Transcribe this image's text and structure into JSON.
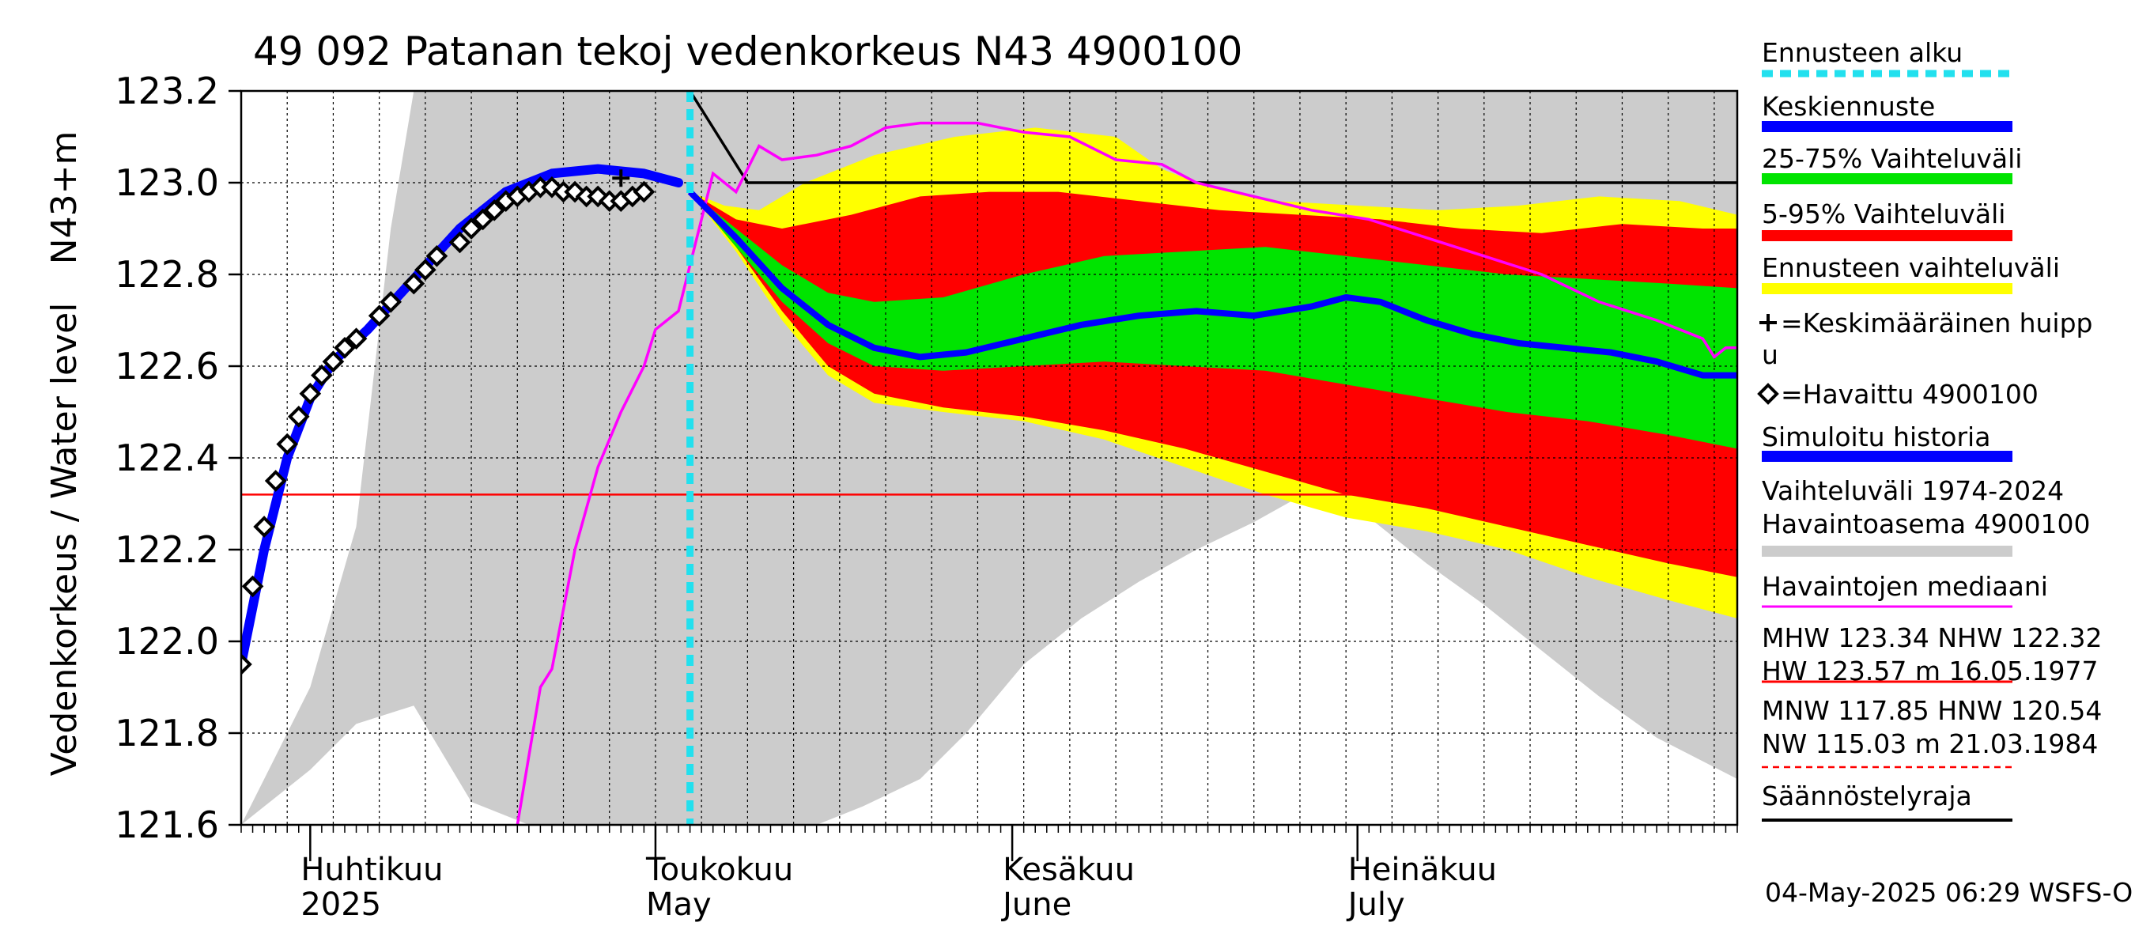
{
  "chart_data": {
    "type": "area",
    "title": "49 092 Patanan tekoj vedenkorkeus N43 4900100",
    "ylabel": "Vedenkorkeus / Water level",
    "yunit": "N43+m",
    "ylim": [
      121.6,
      123.2
    ],
    "yticks": [
      121.6,
      121.8,
      122.0,
      122.2,
      122.4,
      122.6,
      122.8,
      123.0,
      123.2
    ],
    "x_start": "2025-03-26",
    "x_end": "2025-08-03",
    "months": [
      {
        "fi": "Huhtikuu",
        "en": "2025",
        "date": "2025-04-01"
      },
      {
        "fi": "Toukokuu",
        "en": "May",
        "date": "2025-05-01"
      },
      {
        "fi": "Kesäkuu",
        "en": "June",
        "date": "2025-06-01"
      },
      {
        "fi": "Heinäkuu",
        "en": "July",
        "date": "2025-07-01"
      }
    ],
    "forecast_start": "2025-05-04",
    "regulation_limit": [
      [
        "2025-05-04",
        123.2
      ],
      [
        "2025-05-09",
        123.0
      ],
      [
        "2025-08-03",
        123.0
      ]
    ],
    "nhw_line": 122.32,
    "historical_range": {
      "upper": [
        [
          "2025-03-26",
          121.6
        ],
        [
          "2025-03-29",
          121.75
        ],
        [
          "2025-04-01",
          121.9
        ],
        [
          "2025-04-05",
          122.25
        ],
        [
          "2025-04-08",
          122.9
        ],
        [
          "2025-04-10",
          123.2
        ],
        [
          "2025-08-03",
          123.2
        ]
      ],
      "lower": [
        [
          "2025-03-26",
          121.6
        ],
        [
          "2025-03-28",
          121.64
        ],
        [
          "2025-04-01",
          121.72
        ],
        [
          "2025-04-05",
          121.82
        ],
        [
          "2025-04-10",
          121.86
        ],
        [
          "2025-04-15",
          121.65
        ],
        [
          "2025-04-20",
          121.6
        ],
        [
          "2025-05-15",
          121.6
        ],
        [
          "2025-05-19",
          121.64
        ],
        [
          "2025-05-24",
          121.7
        ],
        [
          "2025-05-28",
          121.8
        ],
        [
          "2025-06-02",
          121.95
        ],
        [
          "2025-06-07",
          122.05
        ],
        [
          "2025-06-12",
          122.13
        ],
        [
          "2025-06-17",
          122.2
        ],
        [
          "2025-06-22",
          122.26
        ],
        [
          "2025-06-27",
          122.33
        ],
        [
          "2025-07-02",
          122.27
        ],
        [
          "2025-07-07",
          122.17
        ],
        [
          "2025-07-12",
          122.08
        ],
        [
          "2025-07-17",
          121.98
        ],
        [
          "2025-07-22",
          121.88
        ],
        [
          "2025-07-27",
          121.79
        ],
        [
          "2025-08-03",
          121.7
        ]
      ]
    },
    "forecast_range": {
      "upper": [
        [
          "2025-05-04",
          122.98
        ],
        [
          "2025-05-07",
          122.95
        ],
        [
          "2025-05-10",
          122.94
        ],
        [
          "2025-05-14",
          123.0
        ],
        [
          "2025-05-20",
          123.06
        ],
        [
          "2025-05-27",
          123.1
        ],
        [
          "2025-06-03",
          123.12
        ],
        [
          "2025-06-10",
          123.1
        ],
        [
          "2025-06-14",
          123.03
        ],
        [
          "2025-06-18",
          122.99
        ],
        [
          "2025-06-24",
          122.96
        ],
        [
          "2025-07-01",
          122.95
        ],
        [
          "2025-07-08",
          122.94
        ],
        [
          "2025-07-15",
          122.95
        ],
        [
          "2025-07-22",
          122.97
        ],
        [
          "2025-07-29",
          122.96
        ],
        [
          "2025-08-03",
          122.93
        ]
      ],
      "lower": [
        [
          "2025-05-04",
          122.98
        ],
        [
          "2025-05-08",
          122.85
        ],
        [
          "2025-05-12",
          122.7
        ],
        [
          "2025-05-16",
          122.58
        ],
        [
          "2025-05-20",
          122.52
        ],
        [
          "2025-05-26",
          122.5
        ],
        [
          "2025-06-02",
          122.48
        ],
        [
          "2025-06-09",
          122.44
        ],
        [
          "2025-06-16",
          122.38
        ],
        [
          "2025-06-23",
          122.32
        ],
        [
          "2025-06-30",
          122.27
        ],
        [
          "2025-07-07",
          122.24
        ],
        [
          "2025-07-14",
          122.2
        ],
        [
          "2025-07-21",
          122.14
        ],
        [
          "2025-07-28",
          122.09
        ],
        [
          "2025-08-03",
          122.05
        ]
      ]
    },
    "p5_95": {
      "upper": [
        [
          "2025-05-04",
          122.98
        ],
        [
          "2025-05-08",
          122.92
        ],
        [
          "2025-05-12",
          122.9
        ],
        [
          "2025-05-18",
          122.93
        ],
        [
          "2025-05-24",
          122.97
        ],
        [
          "2025-05-30",
          122.98
        ],
        [
          "2025-06-05",
          122.98
        ],
        [
          "2025-06-12",
          122.96
        ],
        [
          "2025-06-19",
          122.94
        ],
        [
          "2025-06-26",
          122.93
        ],
        [
          "2025-07-03",
          122.92
        ],
        [
          "2025-07-10",
          122.9
        ],
        [
          "2025-07-17",
          122.89
        ],
        [
          "2025-07-24",
          122.91
        ],
        [
          "2025-07-31",
          122.9
        ],
        [
          "2025-08-03",
          122.9
        ]
      ],
      "lower": [
        [
          "2025-05-04",
          122.98
        ],
        [
          "2025-05-08",
          122.86
        ],
        [
          "2025-05-12",
          122.72
        ],
        [
          "2025-05-16",
          122.6
        ],
        [
          "2025-05-20",
          122.54
        ],
        [
          "2025-05-26",
          122.51
        ],
        [
          "2025-06-02",
          122.49
        ],
        [
          "2025-06-09",
          122.46
        ],
        [
          "2025-06-16",
          122.42
        ],
        [
          "2025-06-23",
          122.37
        ],
        [
          "2025-06-30",
          122.32
        ],
        [
          "2025-07-07",
          122.29
        ],
        [
          "2025-07-14",
          122.25
        ],
        [
          "2025-07-21",
          122.21
        ],
        [
          "2025-07-28",
          122.17
        ],
        [
          "2025-08-03",
          122.14
        ]
      ]
    },
    "p25_75": {
      "upper": [
        [
          "2025-05-04",
          122.98
        ],
        [
          "2025-05-08",
          122.9
        ],
        [
          "2025-05-12",
          122.82
        ],
        [
          "2025-05-16",
          122.76
        ],
        [
          "2025-05-20",
          122.74
        ],
        [
          "2025-05-26",
          122.75
        ],
        [
          "2025-06-02",
          122.8
        ],
        [
          "2025-06-09",
          122.84
        ],
        [
          "2025-06-16",
          122.85
        ],
        [
          "2025-06-23",
          122.86
        ],
        [
          "2025-06-30",
          122.84
        ],
        [
          "2025-07-07",
          122.82
        ],
        [
          "2025-07-14",
          122.8
        ],
        [
          "2025-07-21",
          122.79
        ],
        [
          "2025-07-28",
          122.78
        ],
        [
          "2025-08-03",
          122.77
        ]
      ],
      "lower": [
        [
          "2025-05-04",
          122.98
        ],
        [
          "2025-05-08",
          122.86
        ],
        [
          "2025-05-12",
          122.74
        ],
        [
          "2025-05-16",
          122.65
        ],
        [
          "2025-05-20",
          122.6
        ],
        [
          "2025-05-26",
          122.59
        ],
        [
          "2025-06-02",
          122.6
        ],
        [
          "2025-06-09",
          122.61
        ],
        [
          "2025-06-16",
          122.6
        ],
        [
          "2025-06-23",
          122.59
        ],
        [
          "2025-06-30",
          122.56
        ],
        [
          "2025-07-07",
          122.53
        ],
        [
          "2025-07-14",
          122.5
        ],
        [
          "2025-07-21",
          122.48
        ],
        [
          "2025-07-28",
          122.45
        ],
        [
          "2025-08-03",
          122.42
        ]
      ]
    },
    "mean_forecast": [
      [
        "2025-05-04",
        122.98
      ],
      [
        "2025-05-08",
        122.88
      ],
      [
        "2025-05-12",
        122.77
      ],
      [
        "2025-05-16",
        122.69
      ],
      [
        "2025-05-20",
        122.64
      ],
      [
        "2025-05-24",
        122.62
      ],
      [
        "2025-05-28",
        122.63
      ],
      [
        "2025-06-02",
        122.66
      ],
      [
        "2025-06-07",
        122.69
      ],
      [
        "2025-06-12",
        122.71
      ],
      [
        "2025-06-17",
        122.72
      ],
      [
        "2025-06-22",
        122.71
      ],
      [
        "2025-06-27",
        122.73
      ],
      [
        "2025-06-30",
        122.75
      ],
      [
        "2025-07-03",
        122.74
      ],
      [
        "2025-07-07",
        122.7
      ],
      [
        "2025-07-11",
        122.67
      ],
      [
        "2025-07-15",
        122.65
      ],
      [
        "2025-07-19",
        122.64
      ],
      [
        "2025-07-23",
        122.63
      ],
      [
        "2025-07-27",
        122.61
      ],
      [
        "2025-07-31",
        122.58
      ],
      [
        "2025-08-03",
        122.58
      ]
    ],
    "simulated_history": [
      [
        "2025-03-26",
        121.95
      ],
      [
        "2025-03-28",
        122.2
      ],
      [
        "2025-03-30",
        122.4
      ],
      [
        "2025-04-01",
        122.53
      ],
      [
        "2025-04-03",
        122.61
      ],
      [
        "2025-04-06",
        122.68
      ],
      [
        "2025-04-10",
        122.79
      ],
      [
        "2025-04-14",
        122.9
      ],
      [
        "2025-04-18",
        122.98
      ],
      [
        "2025-04-22",
        123.02
      ],
      [
        "2025-04-26",
        123.03
      ],
      [
        "2025-04-30",
        123.02
      ],
      [
        "2025-05-03",
        123.0
      ]
    ],
    "median_observed": [
      [
        "2025-04-19",
        121.6
      ],
      [
        "2025-04-21",
        121.9
      ],
      [
        "2025-04-22",
        121.94
      ],
      [
        "2025-04-24",
        122.2
      ],
      [
        "2025-04-26",
        122.38
      ],
      [
        "2025-04-28",
        122.5
      ],
      [
        "2025-04-30",
        122.6
      ],
      [
        "2025-05-01",
        122.68
      ],
      [
        "2025-05-03",
        122.72
      ],
      [
        "2025-05-06",
        123.02
      ],
      [
        "2025-05-08",
        122.98
      ],
      [
        "2025-05-10",
        123.08
      ],
      [
        "2025-05-12",
        123.05
      ],
      [
        "2025-05-15",
        123.06
      ],
      [
        "2025-05-18",
        123.08
      ],
      [
        "2025-05-21",
        123.12
      ],
      [
        "2025-05-24",
        123.13
      ],
      [
        "2025-05-29",
        123.13
      ],
      [
        "2025-06-02",
        123.11
      ],
      [
        "2025-06-06",
        123.1
      ],
      [
        "2025-06-10",
        123.05
      ],
      [
        "2025-06-14",
        123.04
      ],
      [
        "2025-06-17",
        123.0
      ],
      [
        "2025-06-22",
        122.97
      ],
      [
        "2025-06-27",
        122.94
      ],
      [
        "2025-07-02",
        122.92
      ],
      [
        "2025-07-07",
        122.88
      ],
      [
        "2025-07-12",
        122.84
      ],
      [
        "2025-07-17",
        122.8
      ],
      [
        "2025-07-22",
        122.74
      ],
      [
        "2025-07-27",
        122.7
      ],
      [
        "2025-07-31",
        122.66
      ],
      [
        "2025-08-01",
        122.62
      ],
      [
        "2025-08-02",
        122.64
      ],
      [
        "2025-08-03",
        122.64
      ]
    ],
    "observed": [
      [
        "2025-03-26",
        121.95
      ],
      [
        "2025-03-27",
        122.12
      ],
      [
        "2025-03-28",
        122.25
      ],
      [
        "2025-03-29",
        122.35
      ],
      [
        "2025-03-30",
        122.43
      ],
      [
        "2025-03-31",
        122.49
      ],
      [
        "2025-04-01",
        122.54
      ],
      [
        "2025-04-02",
        122.58
      ],
      [
        "2025-04-03",
        122.61
      ],
      [
        "2025-04-04",
        122.64
      ],
      [
        "2025-04-05",
        122.66
      ],
      [
        "2025-04-07",
        122.71
      ],
      [
        "2025-04-08",
        122.74
      ],
      [
        "2025-04-10",
        122.78
      ],
      [
        "2025-04-11",
        122.81
      ],
      [
        "2025-04-12",
        122.84
      ],
      [
        "2025-04-14",
        122.87
      ],
      [
        "2025-04-15",
        122.9
      ],
      [
        "2025-04-16",
        122.92
      ],
      [
        "2025-04-17",
        122.94
      ],
      [
        "2025-04-18",
        122.96
      ],
      [
        "2025-04-19",
        122.97
      ],
      [
        "2025-04-20",
        122.98
      ],
      [
        "2025-04-21",
        122.99
      ],
      [
        "2025-04-22",
        122.99
      ],
      [
        "2025-04-23",
        122.98
      ],
      [
        "2025-04-24",
        122.98
      ],
      [
        "2025-04-25",
        122.97
      ],
      [
        "2025-04-26",
        122.97
      ],
      [
        "2025-04-27",
        122.96
      ],
      [
        "2025-04-28",
        122.96
      ],
      [
        "2025-04-29",
        122.97
      ],
      [
        "2025-04-30",
        122.98
      ]
    ],
    "mean_peak": [
      [
        "2025-04-28",
        123.01
      ]
    ],
    "legend": [
      {
        "label": "Ennusteen alku",
        "color": "#22e0ee",
        "style": "dashed"
      },
      {
        "label": "Keskiennuste",
        "color": "#0000ff",
        "style": "thick"
      },
      {
        "label": "25-75% Vaihteluväli",
        "color": "#00e400",
        "style": "thick"
      },
      {
        "label": "5-95% Vaihteluväli",
        "color": "#ff0000",
        "style": "thick"
      },
      {
        "label": "Ennusteen vaihteluväli",
        "color": "#ffff00",
        "style": "thick"
      },
      {
        "label": "=Keskimääräinen huipp",
        "label2": "u",
        "color": "#000000",
        "style": "plus"
      },
      {
        "label": "=Havaittu 4900100",
        "color": "#000000",
        "style": "diamond"
      },
      {
        "label": "Simuloitu historia",
        "color": "#0000ff",
        "style": "thick"
      },
      {
        "label": "Vaihteluväli 1974-2024",
        "label2": " Havaintoasema 4900100",
        "color": "#cccccc",
        "style": "thick"
      },
      {
        "label": "Havaintojen mediaani",
        "color": "#ff00ff",
        "style": "thin"
      },
      {
        "label": "MHW 123.34 NHW 122.32",
        "label2": "HW 123.57 m 16.05.1977",
        "color": "#ff0000",
        "style": "thin"
      },
      {
        "label": "MNW 117.85 HNW 120.54",
        "label2": "NW 115.03 m 21.03.1984",
        "color": "#ff0000",
        "style": "dotted"
      },
      {
        "label": "Säännöstelyraja",
        "color": "#000000",
        "style": "thin"
      }
    ],
    "colors": {
      "historical": "#cccccc",
      "forecast_range": "#ffff00",
      "p5_95": "#ff0000",
      "p25_75": "#00e400",
      "mean": "#0000ff",
      "median": "#ff00ff",
      "forecast_start": "#22e0ee",
      "regulation": "#000000",
      "nhw": "#ff0000"
    },
    "footer": "04-May-2025 06:29 WSFS-O"
  }
}
